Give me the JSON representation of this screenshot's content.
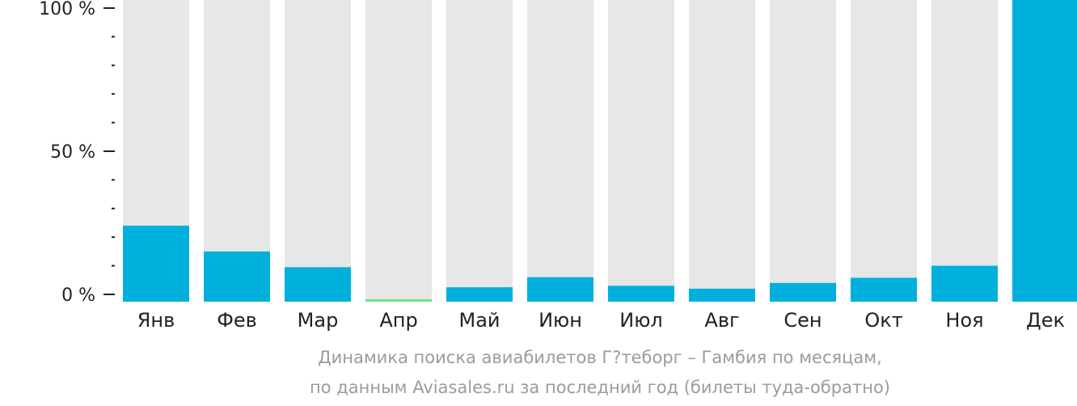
{
  "chart_data": {
    "type": "bar",
    "title": "",
    "xlabel": "",
    "ylabel": "",
    "ylim": [
      0,
      100
    ],
    "y_ticks": [
      {
        "value": 100,
        "label": "100 %"
      },
      {
        "value": 50,
        "label": "50 %"
      },
      {
        "value": 0,
        "label": "0 %"
      }
    ],
    "minor_tick_step": 10,
    "categories": [
      "Янв",
      "Фев",
      "Мар",
      "Апр",
      "Май",
      "Июн",
      "Июл",
      "Авг",
      "Сен",
      "Окт",
      "Ноя",
      "Дек"
    ],
    "values": [
      24,
      15,
      9.5,
      0.5,
      2.5,
      6,
      3,
      2,
      4,
      5.8,
      10,
      100
    ],
    "highlight_index": 3,
    "grid": false,
    "legend": "none"
  },
  "colors": {
    "bar": "#00b0dc",
    "bar_highlight": "#6ee57a",
    "track": "#e7e7e7",
    "axis": "#222222",
    "caption": "#9b9b9b"
  },
  "caption": {
    "line1": "Динамика поиска авиабилетов Г?теборг – Гамбия по месяцам,",
    "line2": "по данным Aviasales.ru за последний год (билеты туда-обратно)"
  }
}
